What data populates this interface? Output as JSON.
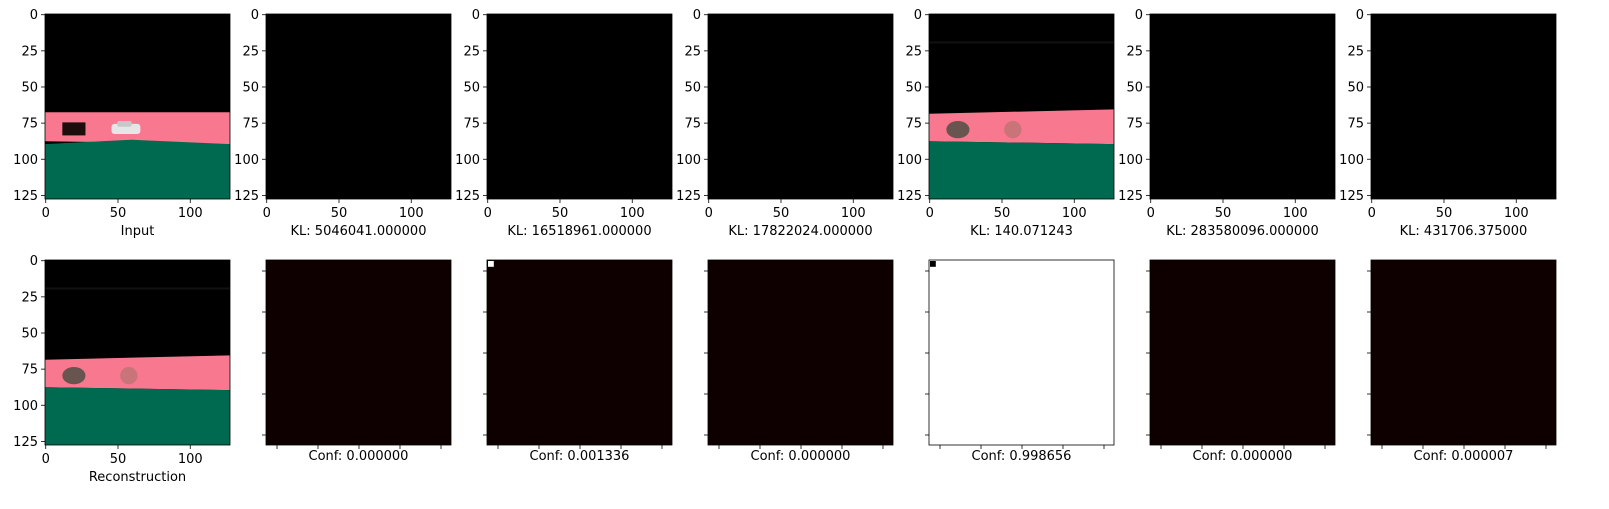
{
  "chart_data": [
    {
      "type": "image",
      "row": 0,
      "col": 0,
      "caption": "Input",
      "content": "scene-input",
      "xticks": [
        0,
        50,
        100
      ],
      "yticks": [
        0,
        25,
        50,
        75,
        100,
        125
      ],
      "xlim": [
        0,
        128
      ],
      "ylim": [
        128,
        0
      ]
    },
    {
      "type": "image",
      "row": 0,
      "col": 1,
      "caption": "KL: 5046041.000000",
      "content": "black",
      "xticks": [
        0,
        50,
        100
      ],
      "yticks": [
        0,
        25,
        50,
        75,
        100,
        125
      ],
      "xlim": [
        0,
        128
      ],
      "ylim": [
        128,
        0
      ]
    },
    {
      "type": "image",
      "row": 0,
      "col": 2,
      "caption": "KL: 16518961.000000",
      "content": "black",
      "xticks": [
        0,
        50,
        100
      ],
      "yticks": [
        0,
        25,
        50,
        75,
        100,
        125
      ],
      "xlim": [
        0,
        128
      ],
      "ylim": [
        128,
        0
      ]
    },
    {
      "type": "image",
      "row": 0,
      "col": 3,
      "caption": "KL: 17822024.000000",
      "content": "black",
      "xticks": [
        0,
        50,
        100
      ],
      "yticks": [
        0,
        25,
        50,
        75,
        100,
        125
      ],
      "xlim": [
        0,
        128
      ],
      "ylim": [
        128,
        0
      ]
    },
    {
      "type": "image",
      "row": 0,
      "col": 4,
      "caption": "KL: 140.071243",
      "content": "scene-blurred",
      "xticks": [
        0,
        50,
        100
      ],
      "yticks": [
        0,
        25,
        50,
        75,
        100,
        125
      ],
      "xlim": [
        0,
        128
      ],
      "ylim": [
        128,
        0
      ]
    },
    {
      "type": "image",
      "row": 0,
      "col": 5,
      "caption": "KL: 283580096.000000",
      "content": "black",
      "xticks": [
        0,
        50,
        100
      ],
      "yticks": [
        0,
        25,
        50,
        75,
        100,
        125
      ],
      "xlim": [
        0,
        128
      ],
      "ylim": [
        128,
        0
      ]
    },
    {
      "type": "image",
      "row": 0,
      "col": 6,
      "caption": "KL: 431706.375000",
      "content": "black",
      "xticks": [
        0,
        50,
        100
      ],
      "yticks": [
        0,
        25,
        50,
        75,
        100,
        125
      ],
      "xlim": [
        0,
        128
      ],
      "ylim": [
        128,
        0
      ]
    },
    {
      "type": "image",
      "row": 1,
      "col": 0,
      "caption": "Reconstruction",
      "content": "scene-blurred",
      "xticks": [
        0,
        50,
        100
      ],
      "yticks": [
        0,
        25,
        50,
        75,
        100,
        125
      ],
      "xlim": [
        0,
        128
      ],
      "ylim": [
        128,
        0
      ]
    },
    {
      "type": "heatmap",
      "row": 1,
      "col": 1,
      "caption": "Conf: 0.000000",
      "content": "dark",
      "show_tick_labels": false
    },
    {
      "type": "heatmap",
      "row": 1,
      "col": 2,
      "caption": "Conf: 0.001336",
      "content": "dark-corner-light",
      "show_tick_labels": false
    },
    {
      "type": "heatmap",
      "row": 1,
      "col": 3,
      "caption": "Conf: 0.000000",
      "content": "dark",
      "show_tick_labels": false
    },
    {
      "type": "heatmap",
      "row": 1,
      "col": 4,
      "caption": "Conf: 0.998656",
      "content": "light-corner-dark",
      "show_tick_labels": false
    },
    {
      "type": "heatmap",
      "row": 1,
      "col": 5,
      "caption": "Conf: 0.000000",
      "content": "dark",
      "show_tick_labels": false
    },
    {
      "type": "heatmap",
      "row": 1,
      "col": 6,
      "caption": "Conf: 0.000007",
      "content": "dark",
      "show_tick_labels": false
    }
  ],
  "colors": {
    "black": "#000000",
    "road": "#f87890",
    "ground": "#006a50",
    "heatmap_dark": "#0f0000",
    "heatmap_light": "#ffffff",
    "car": "#e6e6e6",
    "blob": "#3a4a3a"
  }
}
